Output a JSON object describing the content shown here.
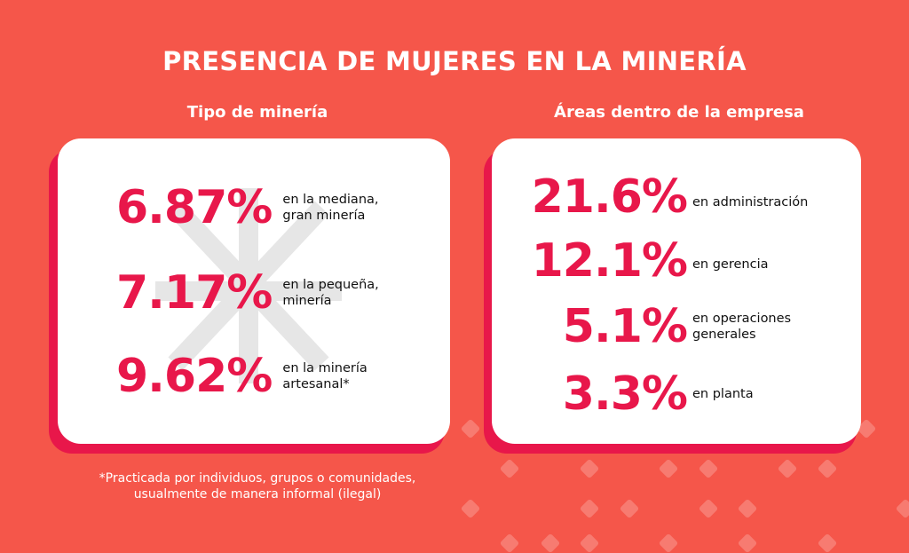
{
  "title": "PRESENCIA DE MUJERES EN LA MINERÍA",
  "left": {
    "heading": "Tipo de minería",
    "items": [
      {
        "value": "6.87%",
        "label": "en la mediana,\ngran minería"
      },
      {
        "value": "7.17%",
        "label": "en la pequeña,\nminería"
      },
      {
        "value": "9.62%",
        "label": "en la minería\nartesanal*"
      }
    ]
  },
  "right": {
    "heading": "Áreas dentro de la empresa",
    "items": [
      {
        "value": "21.6%",
        "label": "en administración"
      },
      {
        "value": "12.1%",
        "label": "en gerencia"
      },
      {
        "value": "5.1%",
        "label": "en operaciones\ngenerales"
      },
      {
        "value": "3.3%",
        "label": "en planta"
      }
    ]
  },
  "footnote": "*Practicada por individuos, grupos o comunidades,\nusualmente de manera informal (ilegal)",
  "colors": {
    "background": "#f5564a",
    "accent": "#e8174a",
    "card": "#ffffff"
  }
}
